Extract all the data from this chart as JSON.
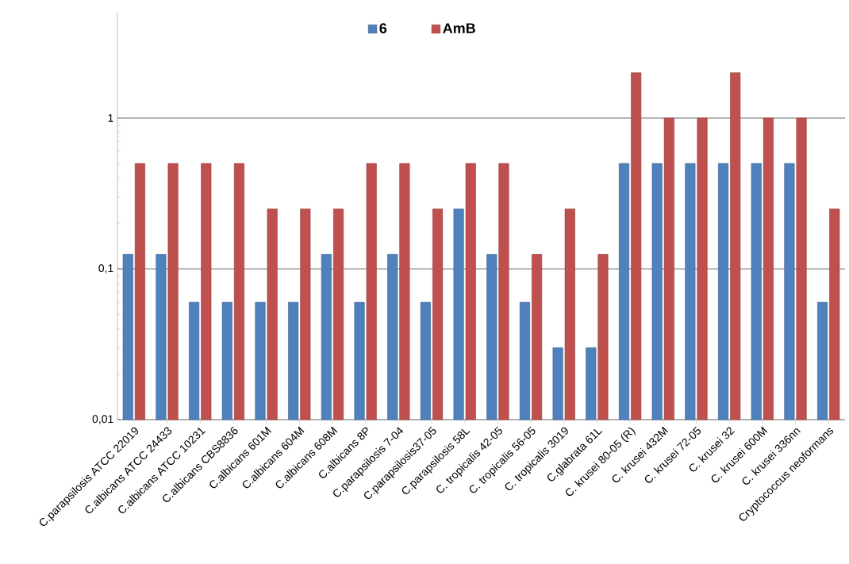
{
  "chart_data": {
    "type": "bar",
    "categories": [
      "C.parapsilosis ATCC 22019",
      "C.albicans ATCC 24433",
      "C.albicans ATCC 10231",
      "C.albicans CBS8836",
      "C.albicans 601M",
      "C.albicans 604M",
      "C.albicans 608M",
      "C.albicans 8P",
      "C.parapsilosis 7-04",
      "C.parapsilosis37-05",
      "C.parapsilosis 58L",
      "C. tropicalis 42-05",
      "C. tropicalis 56-05",
      "C. tropicalis 3019",
      "C.glabrata 61L",
      "C. krusei 80-05 (R)",
      "C. krusei 432M",
      "C. krusei 72-05",
      "C. krusei 32",
      "C. krusei 600M",
      "C. krusei 336nn",
      "Cryptococcus neoformans"
    ],
    "series": [
      {
        "name": "6",
        "color": "#4f81bd",
        "values": [
          0.125,
          0.125,
          0.06,
          0.06,
          0.06,
          0.06,
          0.125,
          0.06,
          0.125,
          0.06,
          0.25,
          0.125,
          0.06,
          0.03,
          0.03,
          0.5,
          0.5,
          0.5,
          0.5,
          0.5,
          0.5,
          0.06
        ]
      },
      {
        "name": "AmB",
        "color": "#c0504d",
        "values": [
          0.5,
          0.5,
          0.5,
          0.5,
          0.25,
          0.25,
          0.25,
          0.5,
          0.5,
          0.25,
          0.5,
          0.5,
          0.125,
          0.25,
          0.125,
          2,
          1,
          1,
          2,
          1,
          1,
          0.25
        ]
      }
    ],
    "log": "y",
    "ylim": [
      0.01,
      5
    ],
    "yticks": [
      {
        "value": 0.01,
        "label": "0,01"
      },
      {
        "value": 0.1,
        "label": "0,1"
      },
      {
        "value": 1,
        "label": "1"
      }
    ],
    "grid": "y",
    "legend": "top"
  }
}
